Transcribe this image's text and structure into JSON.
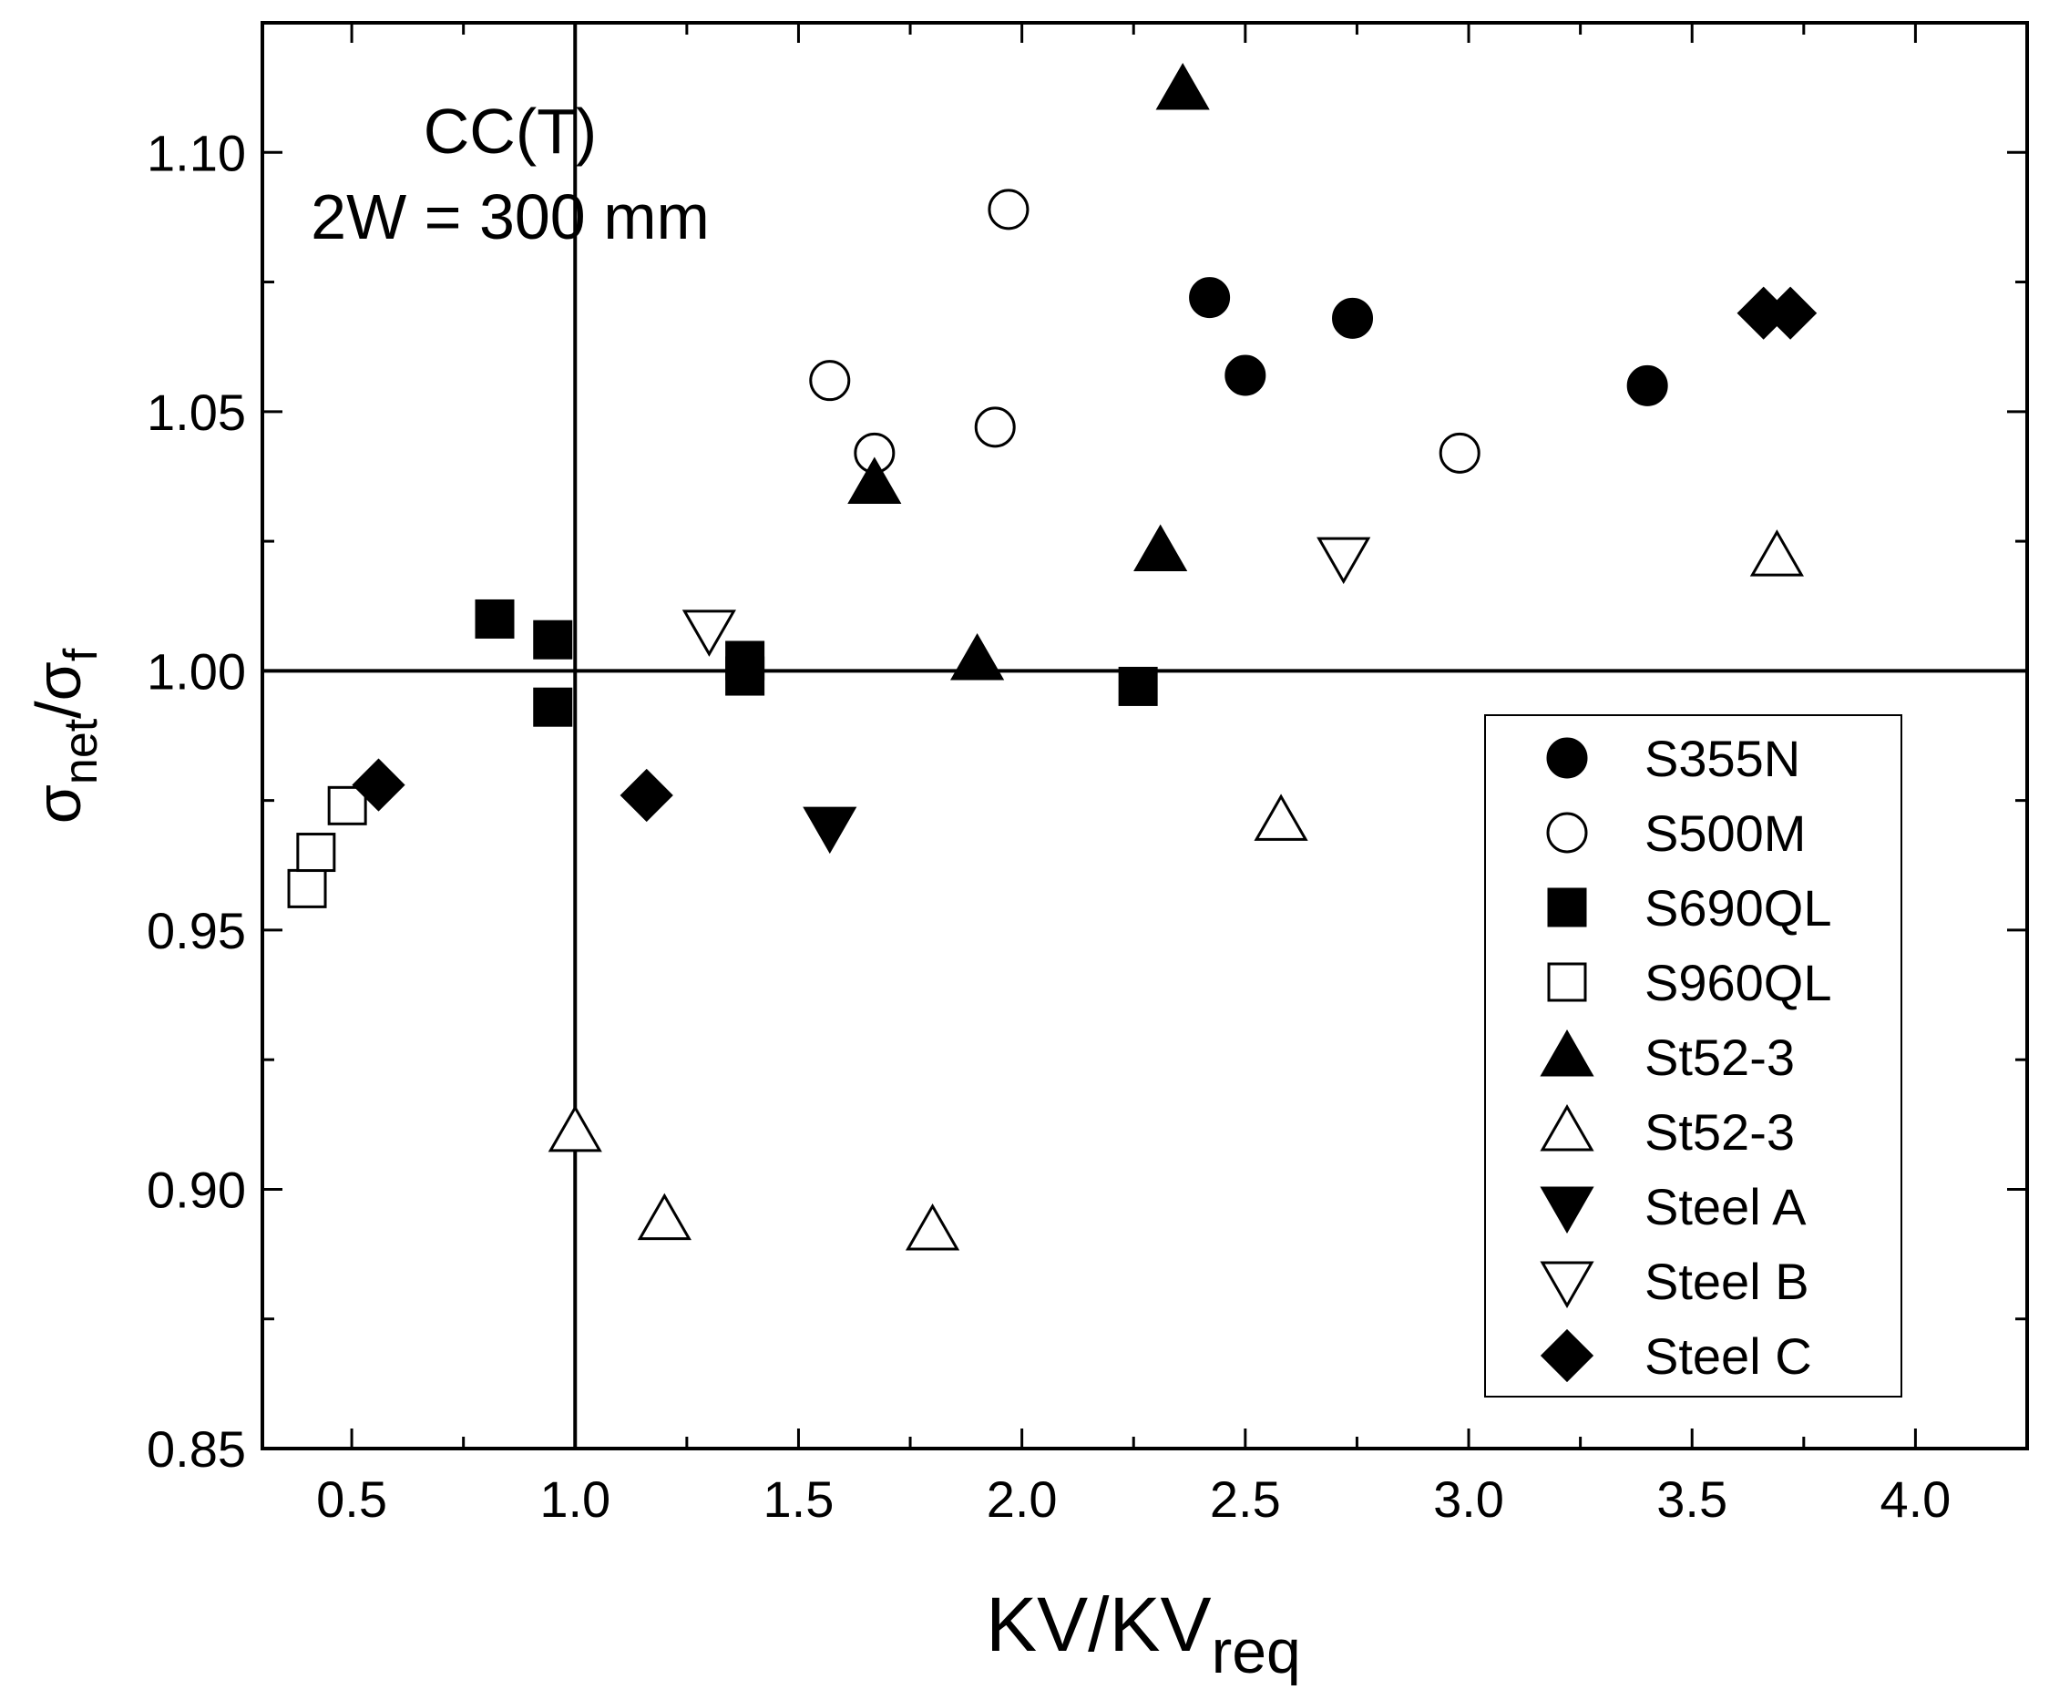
{
  "chart_data": {
    "type": "scatter",
    "title": "",
    "annotation": {
      "line1": "CC(T)",
      "line2": "2W = 300 mm"
    },
    "xlabel": {
      "main": "KV/KV",
      "sub": "req"
    },
    "ylabel": {
      "sigma1": "σ",
      "sub1": "net",
      "slash": "/",
      "sigma2": "σ",
      "sub2": "f"
    },
    "xlim": [
      0.3,
      4.25
    ],
    "ylim": [
      0.85,
      1.125
    ],
    "x_ticks": [
      "0.5",
      "1.0",
      "1.5",
      "2.0",
      "2.5",
      "3.0",
      "3.5",
      "4.0"
    ],
    "y_ticks": [
      "0.85",
      "0.90",
      "0.95",
      "1.00",
      "1.05",
      "1.10"
    ],
    "reference_lines": {
      "x": 1.0,
      "y": 1.0
    },
    "grid": false,
    "legend_position": "bottom-right",
    "series": [
      {
        "name": "S355N",
        "marker": "circle",
        "filled": true,
        "points": [
          [
            2.42,
            1.072
          ],
          [
            2.5,
            1.057
          ],
          [
            2.74,
            1.068
          ],
          [
            3.4,
            1.055
          ]
        ]
      },
      {
        "name": "S500M",
        "marker": "circle",
        "filled": false,
        "points": [
          [
            1.57,
            1.056
          ],
          [
            1.67,
            1.042
          ],
          [
            1.94,
            1.047
          ],
          [
            1.97,
            1.089
          ],
          [
            2.98,
            1.042
          ]
        ]
      },
      {
        "name": "S690QL",
        "marker": "square",
        "filled": true,
        "points": [
          [
            0.82,
            1.01
          ],
          [
            0.95,
            1.006
          ],
          [
            0.95,
            0.993
          ],
          [
            1.38,
            1.002
          ],
          [
            1.38,
            0.999
          ],
          [
            2.26,
            0.997
          ]
        ]
      },
      {
        "name": "S960QL",
        "marker": "square",
        "filled": false,
        "points": [
          [
            0.4,
            0.958
          ],
          [
            0.42,
            0.965
          ],
          [
            0.49,
            0.974
          ]
        ]
      },
      {
        "name": "St52-3",
        "marker": "triangle-up",
        "filled": true,
        "points": [
          [
            1.67,
            1.036
          ],
          [
            1.9,
            1.002
          ],
          [
            2.31,
            1.023
          ],
          [
            2.36,
            1.112
          ]
        ]
      },
      {
        "name": "St52-3",
        "marker": "triangle-up",
        "filled": false,
        "points": [
          [
            1.0,
            0.911
          ],
          [
            1.2,
            0.894
          ],
          [
            1.8,
            0.892
          ],
          [
            2.58,
            0.971
          ],
          [
            3.69,
            1.022
          ]
        ]
      },
      {
        "name": "Steel A",
        "marker": "triangle-down",
        "filled": true,
        "points": [
          [
            1.57,
            0.97
          ]
        ]
      },
      {
        "name": "Steel B",
        "marker": "triangle-down",
        "filled": false,
        "points": [
          [
            1.3,
            1.008
          ],
          [
            2.72,
            1.022
          ]
        ]
      },
      {
        "name": "Steel C",
        "marker": "diamond",
        "filled": true,
        "points": [
          [
            0.56,
            0.978
          ],
          [
            1.16,
            0.976
          ],
          [
            3.66,
            1.069
          ],
          [
            3.72,
            1.069
          ]
        ]
      }
    ]
  }
}
